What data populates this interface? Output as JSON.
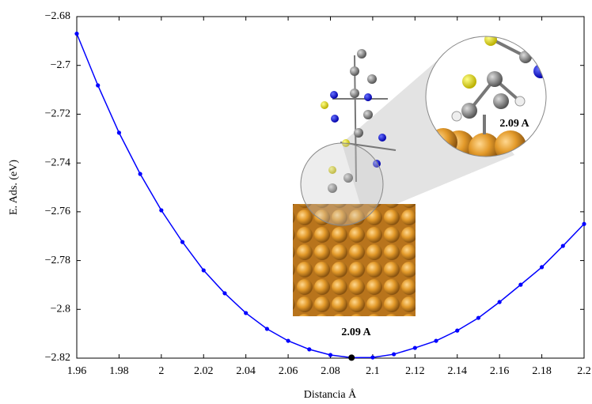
{
  "chart_data": {
    "type": "line",
    "x_label": "Distancia Å",
    "y_label": "E. Ads. (eV)",
    "x": [
      1.96,
      1.97,
      1.98,
      1.99,
      2.0,
      2.01,
      2.02,
      2.03,
      2.04,
      2.05,
      2.06,
      2.07,
      2.08,
      2.09,
      2.1,
      2.11,
      2.12,
      2.13,
      2.14,
      2.15,
      2.16,
      2.17,
      2.18,
      2.19,
      2.2
    ],
    "series": [
      {
        "color": "#0000ff",
        "values": [
          -2.687,
          -2.7082,
          -2.7276,
          -2.7445,
          -2.7594,
          -2.7724,
          -2.784,
          -2.7934,
          -2.8015,
          -2.808,
          -2.8129,
          -2.8164,
          -2.8187,
          -2.8198,
          -2.8197,
          -2.8184,
          -2.8158,
          -2.8129,
          -2.8087,
          -2.8035,
          -2.797,
          -2.7899,
          -2.7827,
          -2.774,
          -2.765
        ]
      }
    ],
    "highlight": {
      "index": 13,
      "color": "#000000"
    },
    "xlim": [
      1.96,
      2.2
    ],
    "xticks": [
      1.96,
      1.98,
      2,
      2.02,
      2.04,
      2.06,
      2.08,
      2.1,
      2.12,
      2.14,
      2.16,
      2.18,
      2.2
    ],
    "ylim": [
      -2.82,
      -2.68
    ],
    "yticks": [
      {
        "value": -2.82,
        "label": "−2.82"
      },
      {
        "value": -2.8,
        "label": "−2.8"
      },
      {
        "value": -2.78,
        "label": "−2.78"
      },
      {
        "value": -2.76,
        "label": "−2.76"
      },
      {
        "value": -2.74,
        "label": "−2.74"
      },
      {
        "value": -2.72,
        "label": "−2.72"
      },
      {
        "value": -2.7,
        "label": "−2.7"
      },
      {
        "value": -2.68,
        "label": "−2.68"
      }
    ],
    "annotations": [
      {
        "text": "2.09 A"
      },
      {
        "text": "2.09 A"
      }
    ]
  }
}
